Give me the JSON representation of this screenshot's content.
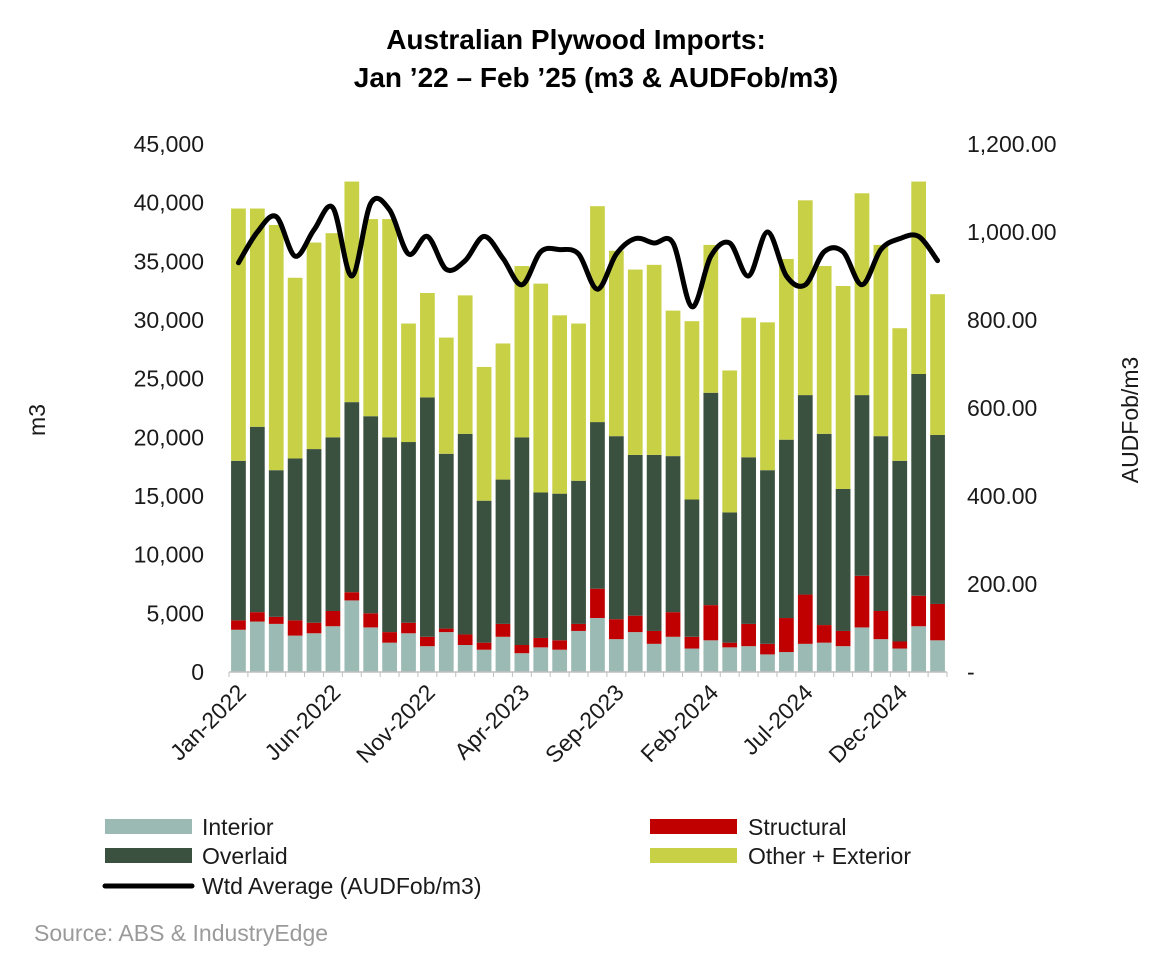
{
  "chart_data": {
    "type": "bar",
    "subtype": "stacked-bar-with-line",
    "title": [
      "Australian Plywood Imports:",
      "Jan ’22 – Feb ’25 (m3 & AUDFob/m3)"
    ],
    "xlabel": "",
    "ylabel": "m3",
    "y2label": "AUDFob/m3",
    "ylim": [
      0,
      45000
    ],
    "y2lim": [
      0,
      1200
    ],
    "y_ticks": [
      "0",
      "5,000",
      "10,000",
      "15,000",
      "20,000",
      "25,000",
      "30,000",
      "35,000",
      "40,000",
      "45,000"
    ],
    "y2_ticks": [
      "-",
      "200.00",
      "400.00",
      "600.00",
      "800.00",
      "1,000.00",
      "1,200.00"
    ],
    "x_tick_labels": [
      "Jan-2022",
      "Jun-2022",
      "Nov-2022",
      "Apr-2023",
      "Sep-2023",
      "Feb-2024",
      "Jul-2024",
      "Dec-2024"
    ],
    "x_tick_indices": [
      0,
      5,
      10,
      15,
      20,
      25,
      30,
      35
    ],
    "categories": [
      "Jan-2022",
      "Feb-2022",
      "Mar-2022",
      "Apr-2022",
      "May-2022",
      "Jun-2022",
      "Jul-2022",
      "Aug-2022",
      "Sep-2022",
      "Oct-2022",
      "Nov-2022",
      "Dec-2022",
      "Jan-2023",
      "Feb-2023",
      "Mar-2023",
      "Apr-2023",
      "May-2023",
      "Jun-2023",
      "Jul-2023",
      "Aug-2023",
      "Sep-2023",
      "Oct-2023",
      "Nov-2023",
      "Dec-2023",
      "Jan-2024",
      "Feb-2024",
      "Mar-2024",
      "Apr-2024",
      "May-2024",
      "Jun-2024",
      "Jul-2024",
      "Aug-2024",
      "Sep-2024",
      "Oct-2024",
      "Nov-2024",
      "Dec-2024",
      "Jan-2025",
      "Feb-2025"
    ],
    "series": [
      {
        "name": "Interior",
        "kind": "bar",
        "color": "#9bbab4",
        "values": [
          3600,
          4300,
          4100,
          3100,
          3300,
          3900,
          6100,
          3800,
          2500,
          3300,
          2200,
          3400,
          2300,
          1900,
          3000,
          1600,
          2100,
          1900,
          3500,
          4600,
          2800,
          3400,
          2400,
          3000,
          2000,
          2700,
          2100,
          2200,
          1500,
          1700,
          2400,
          2500,
          2200,
          3800,
          2800,
          2000,
          3900,
          2700
        ]
      },
      {
        "name": "Structural",
        "kind": "bar",
        "color": "#c00000",
        "values": [
          800,
          800,
          600,
          1300,
          900,
          1300,
          700,
          1200,
          900,
          900,
          800,
          300,
          900,
          600,
          1100,
          700,
          800,
          800,
          600,
          2500,
          1700,
          1400,
          1100,
          2100,
          1000,
          3000,
          400,
          1900,
          900,
          2900,
          4200,
          1500,
          1300,
          4400,
          2400,
          600,
          2600,
          3100
        ]
      },
      {
        "name": "Overlaid",
        "kind": "bar",
        "color": "#3b5140",
        "values": [
          13600,
          15800,
          12500,
          13800,
          14800,
          14800,
          16200,
          16800,
          16600,
          15400,
          20400,
          14900,
          17100,
          12100,
          12300,
          17700,
          12400,
          12500,
          12200,
          14200,
          15600,
          13700,
          15000,
          13300,
          11700,
          18100,
          11100,
          14200,
          14800,
          15200,
          17000,
          16300,
          12100,
          15400,
          14900,
          15400,
          18900,
          14400
        ]
      },
      {
        "name": "Other + Exterior",
        "kind": "bar",
        "color": "#c8d146",
        "values": [
          21500,
          18600,
          20900,
          15400,
          17600,
          17400,
          18800,
          16800,
          18600,
          10100,
          8900,
          9900,
          11800,
          11400,
          11600,
          14600,
          17800,
          15200,
          13400,
          18400,
          15800,
          15800,
          16200,
          12400,
          15200,
          12600,
          12100,
          11900,
          12600,
          15400,
          16600,
          14300,
          17300,
          17200,
          16300,
          11300,
          16400,
          12000
        ]
      },
      {
        "name": "Wtd Average (AUDFob/m3)",
        "kind": "line",
        "axis": "right",
        "color": "#000000",
        "values": [
          930,
          1000,
          1035,
          945,
          1005,
          1055,
          900,
          1065,
          1050,
          950,
          990,
          915,
          935,
          990,
          940,
          880,
          955,
          960,
          950,
          870,
          950,
          985,
          975,
          975,
          830,
          945,
          975,
          900,
          1000,
          900,
          880,
          955,
          955,
          880,
          960,
          985,
          990,
          935
        ]
      }
    ],
    "legend": {
      "position": "bottom",
      "items": [
        "Interior",
        "Structural",
        "Overlaid",
        "Other + Exterior",
        "Wtd Average (AUDFob/m3)"
      ]
    },
    "grid": false
  },
  "source": "Source: ABS & IndustryEdge"
}
